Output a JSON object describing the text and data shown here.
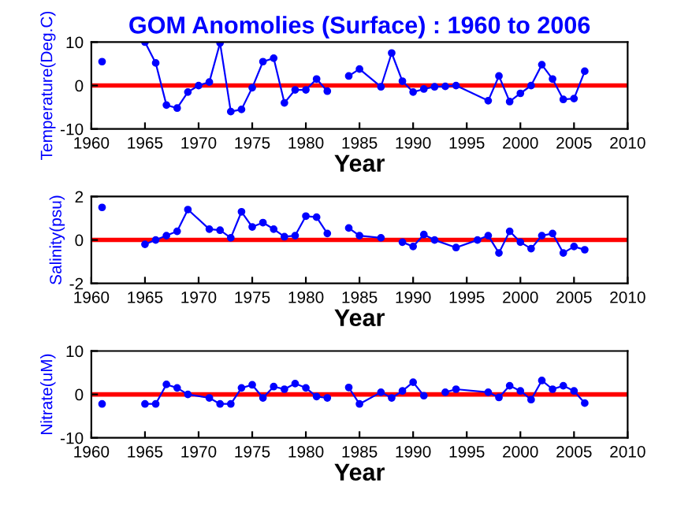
{
  "chart_data": [
    {
      "type": "line",
      "title": "GOM Anomolies (Surface) : 1960 to 2006",
      "xlabel": "Year",
      "ylabel": "Temperature(Deg.C)",
      "xlim": [
        1960,
        2010
      ],
      "xticks": [
        1960,
        1965,
        1970,
        1975,
        1980,
        1985,
        1990,
        1995,
        2000,
        2005,
        2010
      ],
      "ylim": [
        -10,
        10
      ],
      "yticks": [
        -10,
        0,
        10
      ],
      "grid": false,
      "marker": "circle",
      "line_style": "solid",
      "ref_lines": [
        {
          "axis": "y",
          "value": 0,
          "color": "#ff0000"
        }
      ],
      "series": [
        {
          "color": "#0000ff",
          "x": [
            1961,
            1962,
            1965,
            1966,
            1967,
            1968,
            1969,
            1970,
            1971,
            1972,
            1973,
            1974,
            1975,
            1976,
            1977,
            1978,
            1979,
            1980,
            1981,
            1982,
            1983,
            1984,
            1985,
            1987,
            1988,
            1989,
            1990,
            1991,
            1992,
            1993,
            1994,
            1997,
            1998,
            1999,
            2000,
            2001,
            2002,
            2003,
            2004,
            2005,
            2006
          ],
          "values": [
            5.5,
            null,
            10,
            5.2,
            -4.5,
            -5.2,
            -1.5,
            0,
            0.8,
            9.8,
            -6,
            -5.5,
            -0.5,
            5.5,
            6.3,
            -4,
            -1,
            -1,
            1.5,
            -1.3,
            null,
            2.2,
            3.8,
            -0.3,
            7.5,
            1,
            -1.5,
            -0.8,
            -0.3,
            -0.2,
            0,
            -3.5,
            2.2,
            -3.7,
            -1.8,
            0,
            4.8,
            1.5,
            -3.2,
            -3,
            3.3
          ]
        }
      ]
    },
    {
      "type": "line",
      "xlabel": "Year",
      "ylabel": "Salinity(psu)",
      "xlim": [
        1960,
        2010
      ],
      "xticks": [
        1960,
        1965,
        1970,
        1975,
        1980,
        1985,
        1990,
        1995,
        2000,
        2005,
        2010
      ],
      "ylim": [
        -2,
        2
      ],
      "yticks": [
        -2,
        0,
        2
      ],
      "grid": false,
      "marker": "circle",
      "line_style": "solid",
      "ref_lines": [
        {
          "axis": "y",
          "value": 0,
          "color": "#ff0000"
        }
      ],
      "series": [
        {
          "color": "#0000ff",
          "x": [
            1961,
            1962,
            1965,
            1966,
            1967,
            1968,
            1969,
            1971,
            1972,
            1973,
            1974,
            1975,
            1976,
            1977,
            1978,
            1979,
            1980,
            1981,
            1982,
            1983,
            1984,
            1985,
            1987,
            1988,
            1989,
            1990,
            1991,
            1992,
            1994,
            1996,
            1997,
            1998,
            1999,
            2000,
            2001,
            2002,
            2003,
            2004,
            2005,
            2006
          ],
          "values": [
            1.5,
            null,
            -0.2,
            0,
            0.2,
            0.4,
            1.4,
            0.5,
            0.45,
            0.1,
            1.3,
            0.6,
            0.8,
            0.5,
            0.15,
            0.2,
            1.1,
            1.05,
            0.3,
            null,
            0.55,
            0.2,
            0.1,
            null,
            -0.1,
            -0.3,
            0.25,
            0,
            -0.35,
            0,
            0.2,
            -0.6,
            0.4,
            -0.1,
            -0.4,
            0.2,
            0.3,
            -0.6,
            -0.3,
            -0.45
          ]
        }
      ]
    },
    {
      "type": "line",
      "xlabel": "Year",
      "ylabel": "Nitrate(uM)",
      "xlim": [
        1960,
        2010
      ],
      "xticks": [
        1960,
        1965,
        1970,
        1975,
        1980,
        1985,
        1990,
        1995,
        2000,
        2005,
        2010
      ],
      "ylim": [
        -10,
        10
      ],
      "yticks": [
        -10,
        0,
        10
      ],
      "grid": false,
      "marker": "circle",
      "line_style": "solid",
      "ref_lines": [
        {
          "axis": "y",
          "value": 0,
          "color": "#ff0000"
        }
      ],
      "series": [
        {
          "color": "#0000ff",
          "x": [
            1961,
            1962,
            1965,
            1966,
            1967,
            1968,
            1969,
            1971,
            1972,
            1973,
            1974,
            1975,
            1976,
            1977,
            1978,
            1979,
            1980,
            1981,
            1982,
            1983,
            1984,
            1985,
            1987,
            1988,
            1989,
            1990,
            1991,
            1992,
            1993,
            1994,
            1997,
            1998,
            1999,
            2000,
            2001,
            2002,
            2003,
            2004,
            2005,
            2006
          ],
          "values": [
            -2.2,
            null,
            -2.2,
            -2.2,
            2.3,
            1.5,
            0,
            -0.8,
            -2.2,
            -2.2,
            1.5,
            2.2,
            -0.8,
            1.8,
            1.2,
            2.5,
            1.5,
            -0.5,
            -0.8,
            null,
            1.6,
            -2.2,
            0.5,
            -0.8,
            0.8,
            2.8,
            -0.3,
            null,
            0.5,
            1.2,
            0.5,
            -0.7,
            2,
            0.8,
            -1.2,
            3.2,
            1.2,
            2,
            0.8,
            -2
          ]
        }
      ]
    }
  ]
}
